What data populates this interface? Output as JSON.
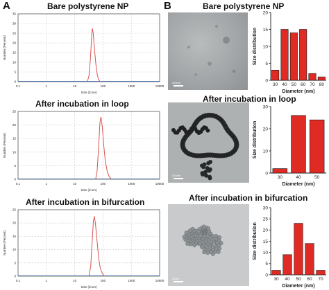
{
  "panels": {
    "a_letter": "A",
    "b_letter": "B",
    "titles": [
      "Bare polystyrene NP",
      "After incubation in loop",
      "After incubation in bifurcation"
    ]
  },
  "tem_scale_labels": [
    "200nm",
    "200nm",
    "20nm"
  ],
  "chart_data": [
    {
      "id": "dls-bare",
      "type": "line",
      "title": "Bare polystyrene NP",
      "xlabel": "Size (d.nm)",
      "ylabel": "Number (Percent)",
      "xscale": "log",
      "xlim": [
        0.1,
        10000
      ],
      "xticks": [
        0.1,
        1,
        10,
        100,
        1000,
        10000
      ],
      "xticklabels": [
        "0.1",
        "1",
        "10",
        "100",
        "1000",
        "10000"
      ],
      "yticks": [
        0,
        5,
        10,
        15,
        20,
        25,
        30,
        35
      ],
      "ylim": [
        0,
        35
      ],
      "grid": true,
      "series": [
        {
          "color": "#d9534f",
          "peak_x": 42,
          "peak_y": 27.5,
          "x": [
            28,
            32,
            36,
            40,
            42,
            45,
            50,
            56,
            63,
            70,
            80
          ],
          "y": [
            0,
            3,
            12,
            24,
            27.5,
            25,
            17,
            9,
            3.5,
            1,
            0
          ]
        }
      ]
    },
    {
      "id": "dls-loop",
      "type": "line",
      "title": "After incubation in loop",
      "xlabel": "Size (d.nm)",
      "ylabel": "Number (Percent)",
      "xscale": "log",
      "xlim": [
        0.1,
        10000
      ],
      "xticks": [
        0.1,
        1,
        10,
        100,
        1000,
        10000
      ],
      "xticklabels": [
        "0.1",
        "1",
        "10",
        "100",
        "1000",
        "10000"
      ],
      "yticks": [
        0,
        5,
        10,
        15,
        20,
        25
      ],
      "ylim": [
        0,
        25
      ],
      "grid": true,
      "series": [
        {
          "color": "#d9534f",
          "x": [
            55,
            62,
            70,
            78,
            85,
            95,
            105,
            120,
            140,
            165,
            200
          ],
          "y": [
            0,
            3,
            12,
            21,
            23,
            19,
            13,
            7,
            3,
            1,
            0
          ]
        }
      ]
    },
    {
      "id": "dls-bif",
      "type": "line",
      "title": "After incubation in bifurcation",
      "xlabel": "Size (d.nm)",
      "ylabel": "Number (Percent)",
      "xscale": "log",
      "xlim": [
        0.1,
        10000
      ],
      "xticks": [
        0.1,
        1,
        10,
        100,
        1000,
        10000
      ],
      "xticklabels": [
        "0.1",
        "1",
        "10",
        "100",
        "1000",
        "10000"
      ],
      "yticks": [
        0,
        5,
        10,
        15,
        20,
        25
      ],
      "ylim": [
        0,
        25
      ],
      "grid": true,
      "series": [
        {
          "color": "#d9534f",
          "x": [
            32,
            37,
            42,
            46,
            50,
            55,
            62,
            70,
            80,
            95,
            110
          ],
          "y": [
            0,
            4,
            14,
            21,
            22.5,
            19,
            13,
            7,
            3,
            1,
            0
          ]
        }
      ]
    },
    {
      "id": "hist-bare",
      "type": "bar",
      "xlabel": "Diameter (nm)",
      "ylabel": "Size distribution",
      "categories": [
        "30",
        "40",
        "50",
        "60",
        "70",
        "80"
      ],
      "values": [
        3,
        15,
        14,
        15,
        2,
        1
      ],
      "ylim": [
        0,
        20
      ],
      "yticks": [
        0,
        5,
        10,
        15,
        20
      ],
      "color": "#e02b24"
    },
    {
      "id": "hist-loop",
      "type": "bar",
      "xlabel": "Diameter (nm)",
      "ylabel": "Size distribution",
      "categories": [
        "30",
        "40",
        "50"
      ],
      "values": [
        2,
        26,
        24
      ],
      "ylim": [
        0,
        30
      ],
      "yticks": [
        0,
        10,
        20,
        30
      ],
      "color": "#e02b24"
    },
    {
      "id": "hist-bif",
      "type": "bar",
      "xlabel": "Diameter (nm)",
      "ylabel": "Size distribution",
      "categories": [
        "30",
        "40",
        "50",
        "60",
        "70"
      ],
      "values": [
        2,
        9,
        23,
        14,
        2
      ],
      "ylim": [
        0,
        30
      ],
      "yticks": [
        0,
        5,
        10,
        15,
        20,
        25,
        30
      ],
      "color": "#e02b24"
    }
  ]
}
